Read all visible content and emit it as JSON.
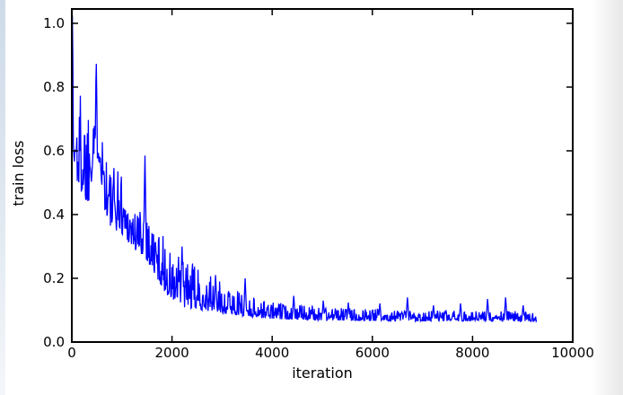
{
  "figure": {
    "background": "#ffffff",
    "edge_left_tint": "#c8d6e6",
    "edge_right_tint": "#e3e3e3"
  },
  "chart_data": {
    "type": "line",
    "title": "",
    "xlabel": "iteration",
    "ylabel": "train loss",
    "xlim": [
      0,
      10000
    ],
    "ylim": [
      0,
      1.045
    ],
    "xticks": [
      0,
      2000,
      4000,
      6000,
      8000,
      10000
    ],
    "yticks": [
      0,
      0.2,
      0.4,
      0.6,
      0.8,
      1.0
    ],
    "xtick_labels": [
      "0",
      "2000",
      "4000",
      "6000",
      "8000",
      "10000"
    ],
    "ytick_labels": [
      "0.0",
      "0.2",
      "0.4",
      "0.6",
      "0.8",
      "1.0"
    ],
    "grid": false,
    "legend": null,
    "axis_color": "#000000",
    "tick_direction": "in",
    "series": [
      {
        "name": "train loss",
        "color": "#0000ff",
        "line_width": 1.3,
        "x_start": 0,
        "x_end": 9280,
        "sample_step": 10,
        "seed": 1337,
        "noise_exponent": 1.8,
        "start_peak": {
          "iteration": 10,
          "loss": 1.025
        },
        "final_loss_approx": 0.08,
        "envelope": [
          [
            0,
            0.55,
            1.02
          ],
          [
            60,
            0.5,
            0.8
          ],
          [
            150,
            0.48,
            0.82
          ],
          [
            250,
            0.45,
            0.8
          ],
          [
            320,
            0.42,
            0.82
          ],
          [
            430,
            0.55,
            0.88
          ],
          [
            500,
            0.58,
            0.9
          ],
          [
            560,
            0.55,
            0.88
          ],
          [
            620,
            0.45,
            0.72
          ],
          [
            700,
            0.38,
            0.62
          ],
          [
            800,
            0.35,
            0.55
          ],
          [
            950,
            0.35,
            0.58
          ],
          [
            1050,
            0.33,
            0.5
          ],
          [
            1150,
            0.31,
            0.46
          ],
          [
            1300,
            0.28,
            0.42
          ],
          [
            1450,
            0.27,
            0.46
          ],
          [
            1550,
            0.24,
            0.4
          ],
          [
            1700,
            0.2,
            0.36
          ],
          [
            1850,
            0.16,
            0.33
          ],
          [
            2000,
            0.125,
            0.28
          ],
          [
            2200,
            0.11,
            0.27
          ],
          [
            2400,
            0.105,
            0.25
          ],
          [
            2600,
            0.1,
            0.22
          ],
          [
            2800,
            0.095,
            0.205
          ],
          [
            3000,
            0.09,
            0.185
          ],
          [
            3250,
            0.085,
            0.165
          ],
          [
            3500,
            0.08,
            0.15
          ],
          [
            3800,
            0.075,
            0.135
          ],
          [
            4100,
            0.072,
            0.125
          ],
          [
            4500,
            0.07,
            0.118
          ],
          [
            5000,
            0.068,
            0.112
          ],
          [
            5500,
            0.067,
            0.108
          ],
          [
            6000,
            0.066,
            0.105
          ],
          [
            6500,
            0.066,
            0.102
          ],
          [
            7000,
            0.065,
            0.1
          ],
          [
            7500,
            0.065,
            0.098
          ],
          [
            8000,
            0.065,
            0.098
          ],
          [
            8500,
            0.065,
            0.1
          ],
          [
            9000,
            0.065,
            0.098
          ],
          [
            9280,
            0.065,
            0.092
          ]
        ],
        "spikes": [
          [
            1455,
            0.585
          ],
          [
            2204,
            0.3
          ],
          [
            2867,
            0.21
          ],
          [
            3459,
            0.2
          ],
          [
            4426,
            0.145
          ],
          [
            5018,
            0.13
          ],
          [
            5520,
            0.124
          ],
          [
            6147,
            0.121
          ],
          [
            6703,
            0.14
          ],
          [
            7222,
            0.115
          ],
          [
            7760,
            0.121
          ],
          [
            8297,
            0.135
          ],
          [
            8656,
            0.14
          ],
          [
            9014,
            0.115
          ]
        ]
      }
    ]
  }
}
